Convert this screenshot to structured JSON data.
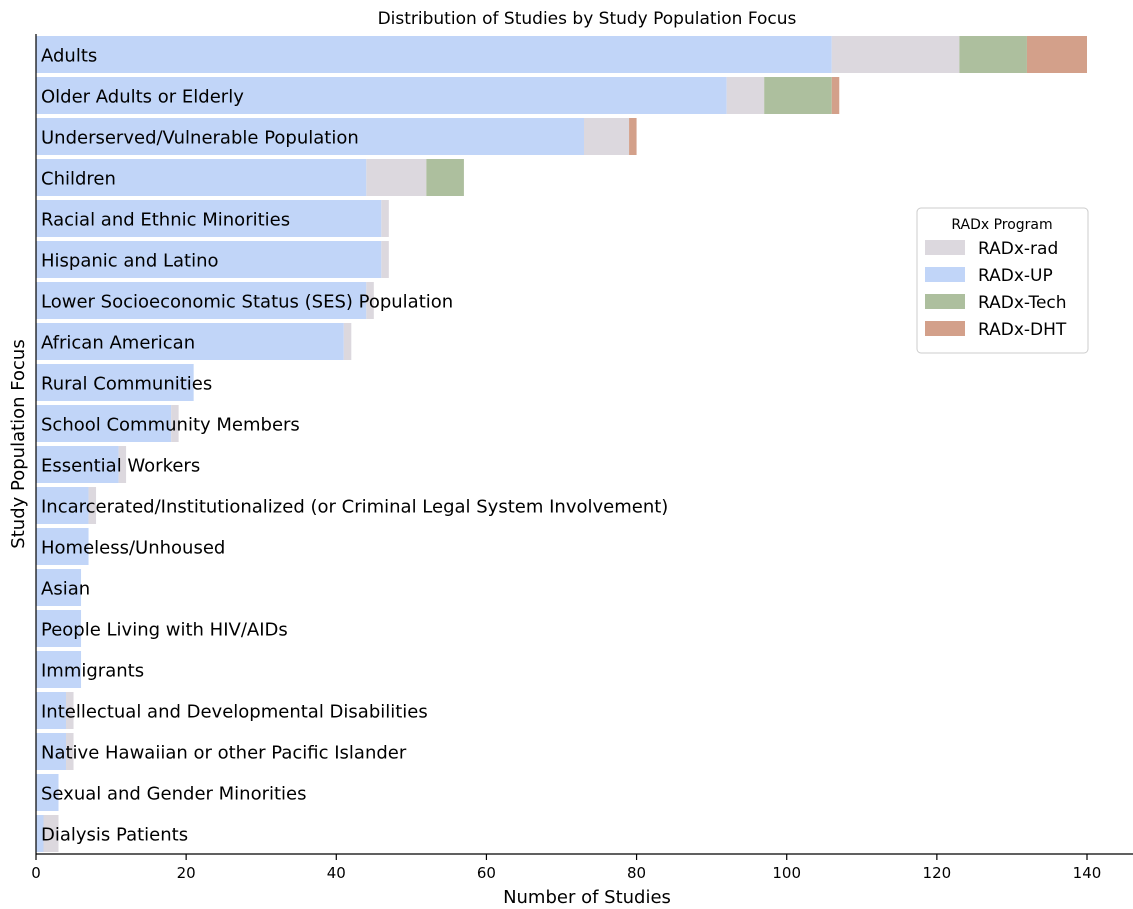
{
  "chart_data": {
    "type": "bar",
    "orientation": "horizontal",
    "stacked": true,
    "title": "Distribution of Studies by Study Population Focus",
    "xlabel": "Number of Studies",
    "ylabel": "Study Population Focus",
    "xlim": [
      0,
      146
    ],
    "xticks": [
      "0",
      "20",
      "40",
      "60",
      "80",
      "100",
      "120",
      "140"
    ],
    "grid": false,
    "legend_title": "RADx Program",
    "legend_placement": "center-right",
    "categories": [
      "Adults",
      "Older Adults or Elderly",
      "Underserved/Vulnerable Population",
      "Children",
      "Racial and Ethnic Minorities",
      "Hispanic and Latino",
      "Lower Socioeconomic Status (SES) Population",
      "African American",
      "Rural Communities",
      "School Community Members",
      "Essential Workers",
      "Incarcerated/Institutionalized (or Criminal Legal System Involvement)",
      "Homeless/Unhoused",
      "Asian",
      "People Living with HIV/AIDs",
      "Immigrants",
      "Intellectual and Developmental Disabilities",
      "Native Hawaiian or other Pacific Islander",
      "Sexual and Gender Minorities",
      "Dialysis Patients"
    ],
    "stack_order": [
      "RADx-UP",
      "RADx-rad",
      "RADx-Tech",
      "RADx-DHT"
    ],
    "series": [
      {
        "name": "RADx-rad",
        "color": "#dcd8de",
        "values": [
          17,
          5,
          6,
          8,
          1,
          1,
          1,
          1,
          0,
          1,
          1,
          1,
          0,
          0,
          0,
          0,
          1,
          1,
          0,
          2
        ]
      },
      {
        "name": "RADx-UP",
        "color": "#c1d5f8",
        "values": [
          106,
          92,
          73,
          44,
          46,
          46,
          44,
          41,
          21,
          18,
          11,
          7,
          7,
          6,
          6,
          6,
          4,
          4,
          3,
          1
        ]
      },
      {
        "name": "RADx-Tech",
        "color": "#adbf9e",
        "values": [
          9,
          9,
          0,
          5,
          0,
          0,
          0,
          0,
          0,
          0,
          0,
          0,
          0,
          0,
          0,
          0,
          0,
          0,
          0,
          0
        ]
      },
      {
        "name": "RADx-DHT",
        "color": "#d3a08a",
        "values": [
          8,
          1,
          1,
          0,
          0,
          0,
          0,
          0,
          0,
          0,
          0,
          0,
          0,
          0,
          0,
          0,
          0,
          0,
          0,
          0
        ]
      }
    ]
  }
}
